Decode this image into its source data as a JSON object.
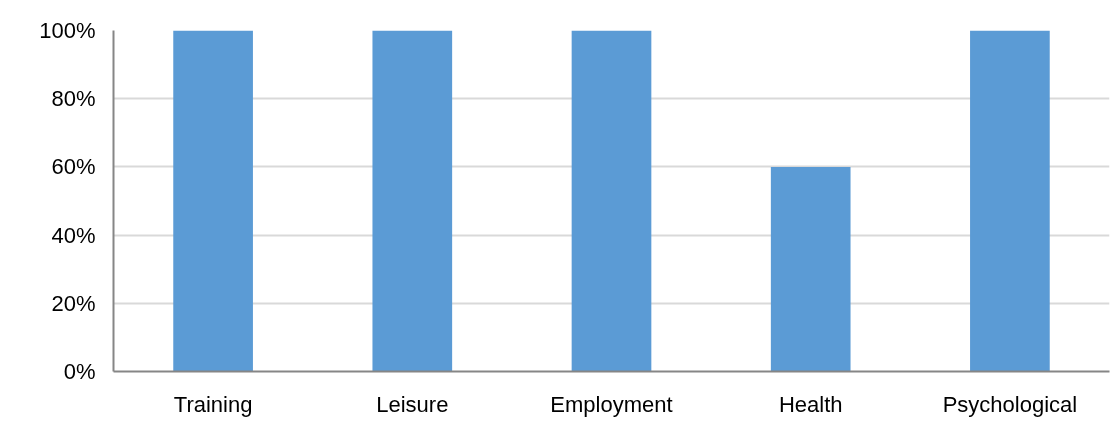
{
  "chart_data": {
    "type": "bar",
    "categories": [
      "Training",
      "Leisure",
      "Employment",
      "Health",
      "Psychological"
    ],
    "series": [
      {
        "color": "#5b9bd5",
        "values": [
          100,
          100,
          100,
          60,
          100
        ]
      }
    ],
    "ylim": [
      0,
      100
    ],
    "yticks": [
      {
        "value": 0,
        "label": "0%"
      },
      {
        "value": 20,
        "label": "20%"
      },
      {
        "value": 40,
        "label": "40%"
      },
      {
        "value": 60,
        "label": "60%"
      },
      {
        "value": 80,
        "label": "80%"
      },
      {
        "value": 100,
        "label": "100%"
      }
    ],
    "grid": "y"
  }
}
